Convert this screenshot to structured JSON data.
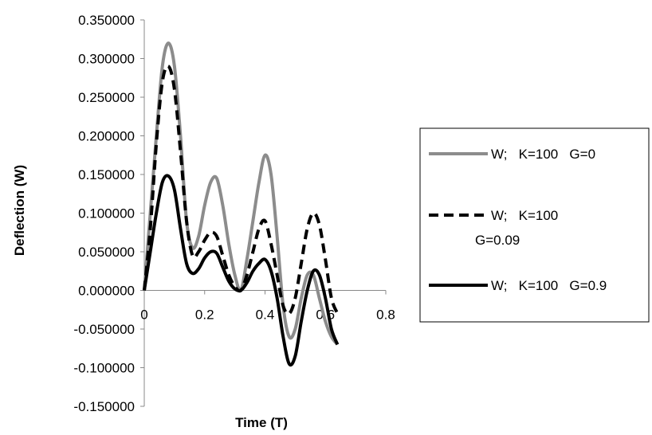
{
  "chart_data": {
    "type": "line",
    "xlabel": "Time (T)",
    "ylabel": "Deflection (W)",
    "xlim": [
      0,
      0.8
    ],
    "ylim": [
      -0.15,
      0.35
    ],
    "x_ticks": [
      0,
      0.2,
      0.4,
      0.6,
      0.8
    ],
    "x_tick_labels": [
      "0",
      "0.2",
      "0.4",
      "0.6",
      "0.8"
    ],
    "y_ticks": [
      -0.15,
      -0.1,
      -0.05,
      0,
      0.05,
      0.1,
      0.15,
      0.2,
      0.25,
      0.3,
      0.35
    ],
    "y_tick_labels": [
      "-0.150000",
      "-0.100000",
      "-0.050000",
      "0.000000",
      "0.050000",
      "0.100000",
      "0.150000",
      "0.200000",
      "0.250000",
      "0.300000",
      "0.350000"
    ],
    "grid": false,
    "legend_position": "right",
    "series": [
      {
        "name": "W;   K=100   G=0",
        "label_lines": [
          "W;   K=100   G=0"
        ],
        "color": "#8c8c8c",
        "dash": "solid",
        "x": [
          0,
          0.02,
          0.04,
          0.06,
          0.08,
          0.1,
          0.12,
          0.14,
          0.16,
          0.18,
          0.2,
          0.22,
          0.24,
          0.26,
          0.28,
          0.3,
          0.32,
          0.34,
          0.36,
          0.38,
          0.4,
          0.42,
          0.44,
          0.46,
          0.48,
          0.5,
          0.52,
          0.54,
          0.56,
          0.58,
          0.6,
          0.62,
          0.64
        ],
        "y": [
          0,
          0.1,
          0.2,
          0.29,
          0.32,
          0.29,
          0.2,
          0.09,
          0.055,
          0.07,
          0.11,
          0.14,
          0.145,
          0.11,
          0.06,
          0.02,
          0.0,
          0.04,
          0.09,
          0.14,
          0.175,
          0.15,
          0.07,
          -0.02,
          -0.06,
          -0.05,
          -0.01,
          0.02,
          0.02,
          -0.01,
          -0.04,
          -0.06,
          -0.07
        ]
      },
      {
        "name": "W;   K=100 G=0.09",
        "label_lines": [
          "W;   K=100",
          "G=0.09"
        ],
        "color": "#000000",
        "dash": "dashed",
        "x": [
          0,
          0.02,
          0.04,
          0.06,
          0.08,
          0.1,
          0.12,
          0.14,
          0.16,
          0.18,
          0.2,
          0.22,
          0.24,
          0.26,
          0.28,
          0.3,
          0.32,
          0.34,
          0.36,
          0.38,
          0.4,
          0.42,
          0.44,
          0.46,
          0.48,
          0.5,
          0.52,
          0.54,
          0.56,
          0.58,
          0.6,
          0.62,
          0.64
        ],
        "y": [
          0,
          0.08,
          0.19,
          0.27,
          0.29,
          0.26,
          0.18,
          0.09,
          0.045,
          0.05,
          0.065,
          0.075,
          0.07,
          0.045,
          0.02,
          0.005,
          0.0,
          0.02,
          0.05,
          0.08,
          0.09,
          0.06,
          0.02,
          -0.02,
          -0.03,
          -0.01,
          0.035,
          0.08,
          0.1,
          0.085,
          0.04,
          -0.01,
          -0.03
        ]
      },
      {
        "name": "W;   K=100   G=0.9",
        "label_lines": [
          "W;   K=100   G=0.9"
        ],
        "color": "#000000",
        "dash": "solid",
        "x": [
          0,
          0.02,
          0.04,
          0.06,
          0.08,
          0.1,
          0.12,
          0.14,
          0.16,
          0.18,
          0.2,
          0.22,
          0.24,
          0.26,
          0.28,
          0.3,
          0.32,
          0.34,
          0.36,
          0.38,
          0.4,
          0.42,
          0.44,
          0.46,
          0.48,
          0.5,
          0.52,
          0.54,
          0.56,
          0.58,
          0.6,
          0.62,
          0.64
        ],
        "y": [
          0,
          0.05,
          0.1,
          0.14,
          0.148,
          0.13,
          0.08,
          0.035,
          0.022,
          0.028,
          0.042,
          0.05,
          0.048,
          0.03,
          0.012,
          0.002,
          0.0,
          0.01,
          0.025,
          0.035,
          0.04,
          0.025,
          -0.01,
          -0.06,
          -0.095,
          -0.085,
          -0.04,
          0.0,
          0.025,
          0.02,
          -0.01,
          -0.05,
          -0.07
        ]
      }
    ]
  }
}
